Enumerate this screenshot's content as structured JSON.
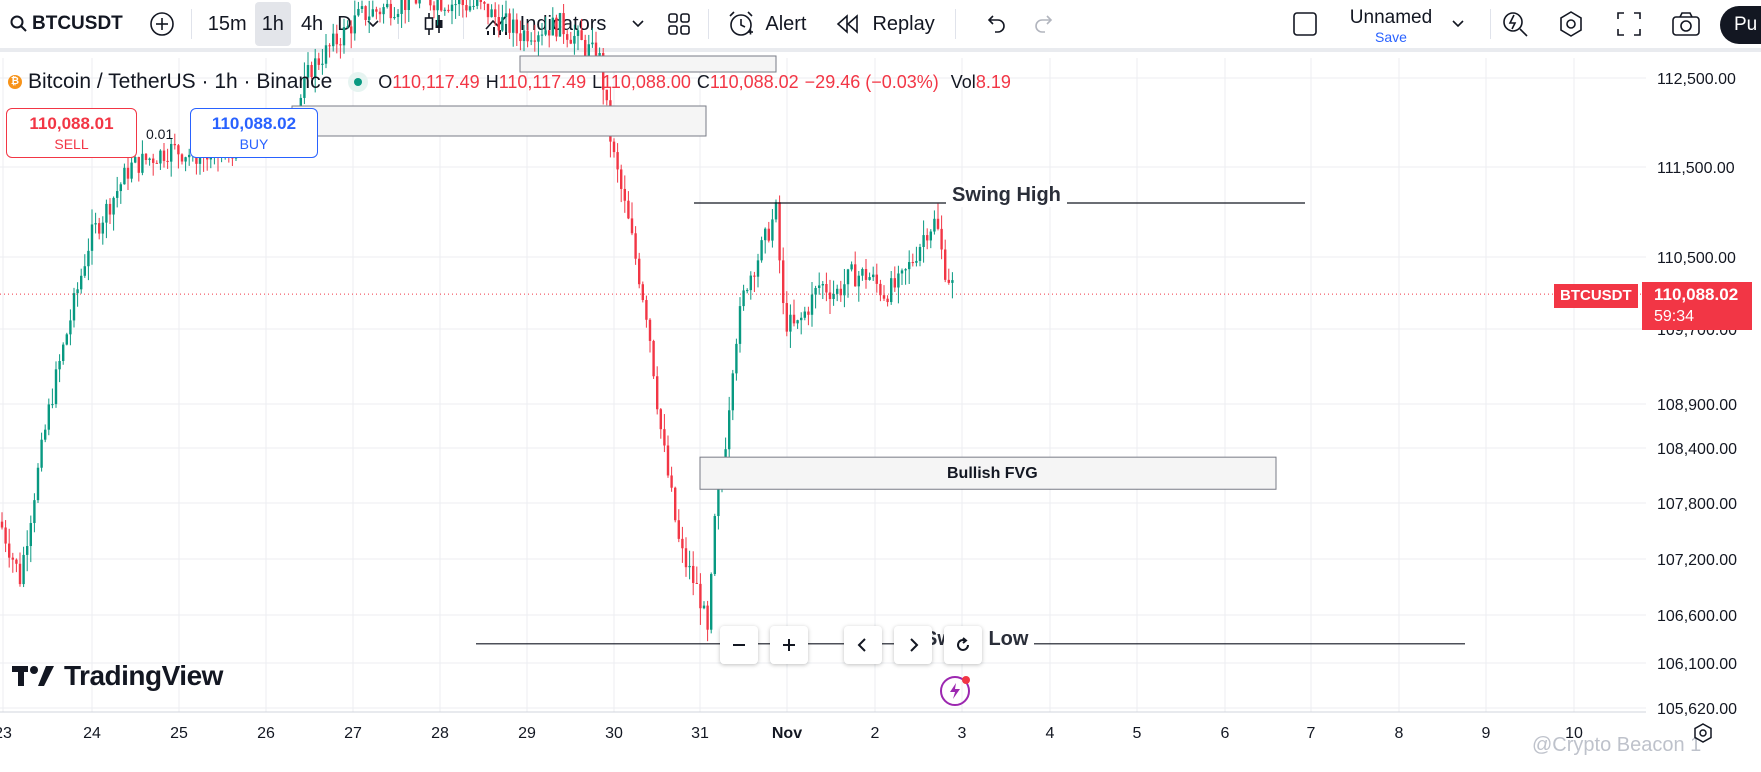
{
  "toolbar": {
    "symbol": "BTCUSDT",
    "intervals": [
      "15m",
      "1h",
      "4h",
      "D"
    ],
    "active_interval": "1h",
    "indicators_label": "Indicators",
    "alert_label": "Alert",
    "replay_label": "Replay",
    "layout_name": "Unnamed",
    "layout_save": "Save",
    "publish_label": "Pu"
  },
  "legend": {
    "title": "Bitcoin / TetherUS · 1h · Binance",
    "o_label": "O",
    "o": "110,117.49",
    "h_label": "H",
    "h": "110,117.49",
    "l_label": "L",
    "l": "110,088.00",
    "c_label": "C",
    "c": "110,088.02",
    "change": "−29.46 (−0.03%)",
    "vol_label": "Vol",
    "vol": "8.19"
  },
  "trade": {
    "sell_price": "110,088.01",
    "sell_label": "SELL",
    "qty": "0.01",
    "buy_price": "110,088.02",
    "buy_label": "BUY"
  },
  "annotations": {
    "swing_high": "Swing High",
    "swing_low": "Swing Low",
    "bullish_fvg": "Bullish FVG"
  },
  "price_tag": {
    "symbol": "BTCUSDT",
    "price": "110,088.02",
    "countdown": "59:34"
  },
  "branding": {
    "logo": "TradingView",
    "watermark": "@Crypto Beacon 1"
  },
  "colors": {
    "up": "#089981",
    "down": "#f23645",
    "accent": "#2962ff",
    "grid": "#e6e8ee"
  },
  "chart_data": {
    "type": "candlestick",
    "y_ticks": [
      "112,500.00",
      "111,500.00",
      "110,500.00",
      "109,700.00",
      "108,900.00",
      "108,400.00",
      "107,800.00",
      "107,200.00",
      "106,600.00",
      "106,100.00",
      "105,620.00"
    ],
    "x_ticks": [
      "23",
      "24",
      "25",
      "26",
      "27",
      "28",
      "29",
      "30",
      "31",
      "Nov",
      "2",
      "3",
      "4",
      "5",
      "6",
      "7",
      "8",
      "9",
      "10"
    ],
    "ylim": [
      105500,
      112800
    ],
    "last_price": 110088.02,
    "swing_high": 111100,
    "swing_low": 106300,
    "fvg_range": [
      107950,
      108300
    ],
    "grid": true
  }
}
